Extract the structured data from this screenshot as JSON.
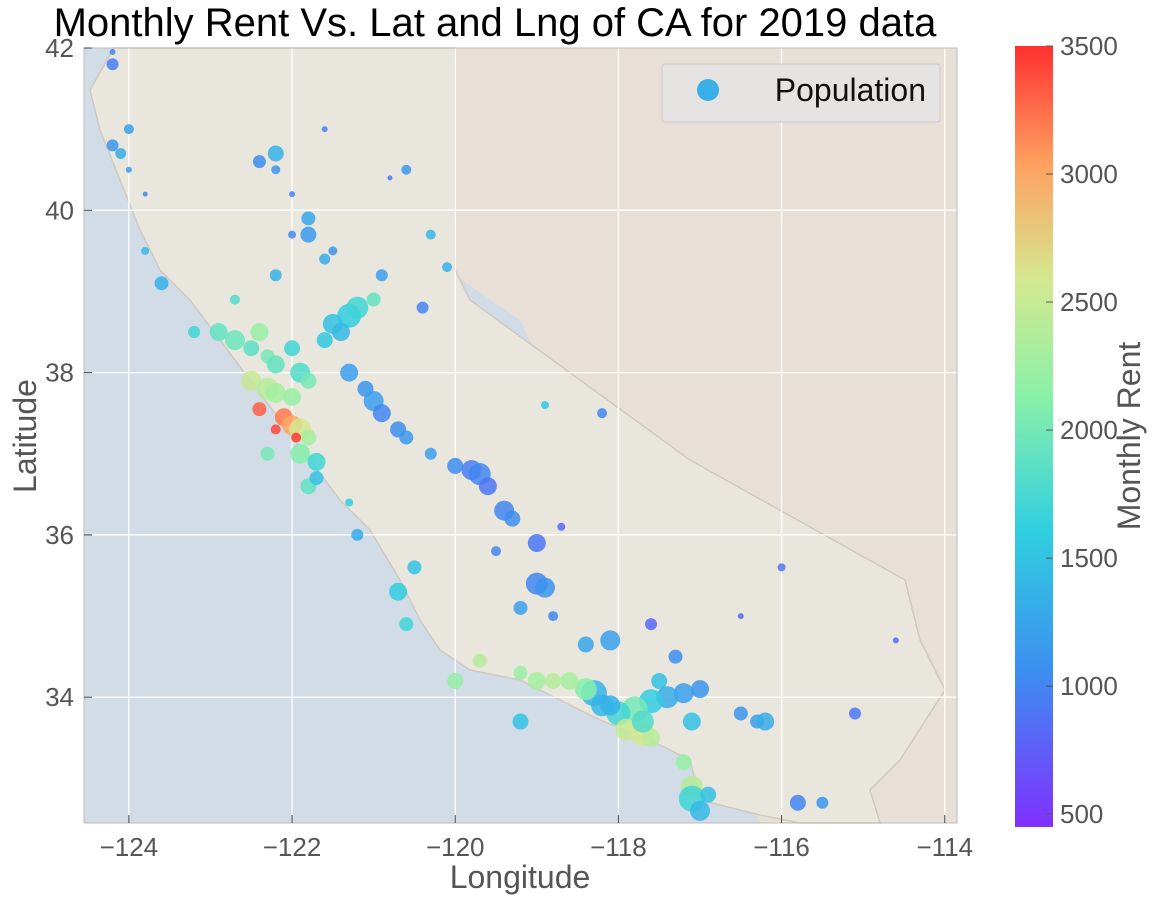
{
  "chart_data": {
    "type": "scatter",
    "title": "Monthly Rent Vs. Lat and Lng of CA for 2019 data",
    "xlabel": "Longitude",
    "ylabel": "Latitude",
    "xlim": [
      -124.55,
      -113.85
    ],
    "ylim": [
      32.45,
      42.0
    ],
    "xticks": [
      -124,
      -122,
      -120,
      -118,
      -116,
      -114
    ],
    "yticks": [
      34,
      36,
      38,
      40,
      42
    ],
    "xtick_labels": [
      "−124",
      "−122",
      "−120",
      "−118",
      "−116",
      "−114"
    ],
    "ytick_labels": [
      "34",
      "36",
      "38",
      "40",
      "42"
    ],
    "grid": true,
    "legend": {
      "position": "top-right",
      "entries": [
        "Population"
      ],
      "marker_color": "#3bb0e8"
    },
    "colorbar": {
      "label": "Monthly Rent",
      "range": [
        450,
        3500
      ],
      "ticks": [
        500,
        1000,
        1500,
        2000,
        2500,
        3000,
        3500
      ],
      "tick_labels": [
        "500",
        "1000",
        "1500",
        "2000",
        "2500",
        "3000",
        "3500"
      ],
      "colormap": "rainbow"
    },
    "series": [
      {
        "name": "Population",
        "points": [
          [
            -124.2,
            41.95,
            1000,
            6
          ],
          [
            -124.2,
            41.8,
            950,
            12
          ],
          [
            -124.0,
            41.0,
            1200,
            10
          ],
          [
            -124.2,
            40.8,
            1100,
            12
          ],
          [
            -124.1,
            40.7,
            1300,
            11
          ],
          [
            -124.0,
            40.5,
            1150,
            6
          ],
          [
            -123.8,
            40.2,
            1000,
            5
          ],
          [
            -122.4,
            40.6,
            1050,
            13
          ],
          [
            -122.2,
            40.7,
            1350,
            16
          ],
          [
            -122.2,
            40.5,
            1100,
            9
          ],
          [
            -122.0,
            40.2,
            950,
            6
          ],
          [
            -121.6,
            41.0,
            1000,
            6
          ],
          [
            -120.8,
            40.4,
            900,
            5
          ],
          [
            -120.6,
            40.5,
            1150,
            10
          ],
          [
            -121.8,
            39.9,
            1250,
            14
          ],
          [
            -121.8,
            39.7,
            1150,
            16
          ],
          [
            -121.5,
            39.5,
            1100,
            9
          ],
          [
            -121.6,
            39.4,
            1300,
            11
          ],
          [
            -122.0,
            39.7,
            1000,
            8
          ],
          [
            -122.2,
            39.2,
            1350,
            12
          ],
          [
            -123.6,
            39.1,
            1350,
            14
          ],
          [
            -123.8,
            39.5,
            1400,
            8
          ],
          [
            -123.2,
            38.5,
            1700,
            12
          ],
          [
            -122.9,
            38.5,
            1900,
            18
          ],
          [
            -122.7,
            38.4,
            1950,
            20
          ],
          [
            -122.5,
            38.3,
            1850,
            16
          ],
          [
            -122.4,
            38.5,
            2200,
            18
          ],
          [
            -122.3,
            38.2,
            2000,
            14
          ],
          [
            -122.0,
            38.3,
            1700,
            16
          ],
          [
            -122.2,
            38.1,
            1900,
            18
          ],
          [
            -121.9,
            38.0,
            1800,
            20
          ],
          [
            -122.5,
            37.9,
            2500,
            20
          ],
          [
            -122.3,
            37.8,
            2400,
            22
          ],
          [
            -122.2,
            37.75,
            2300,
            20
          ],
          [
            -122.0,
            37.7,
            2200,
            18
          ],
          [
            -121.8,
            37.9,
            2000,
            16
          ],
          [
            -122.4,
            37.55,
            3300,
            14
          ],
          [
            -122.1,
            37.45,
            3200,
            18
          ],
          [
            -122.0,
            37.35,
            3000,
            20
          ],
          [
            -121.9,
            37.3,
            2600,
            22
          ],
          [
            -121.8,
            37.2,
            2300,
            16
          ],
          [
            -122.2,
            37.3,
            3400,
            10
          ],
          [
            -121.95,
            37.2,
            3450,
            10
          ],
          [
            -122.3,
            37.0,
            2000,
            14
          ],
          [
            -121.9,
            37.0,
            2100,
            20
          ],
          [
            -121.7,
            36.9,
            1700,
            18
          ],
          [
            -121.8,
            36.6,
            1900,
            16
          ],
          [
            -121.7,
            36.7,
            1500,
            14
          ],
          [
            -121.3,
            36.4,
            1600,
            8
          ],
          [
            -121.3,
            38.7,
            1600,
            24
          ],
          [
            -121.5,
            38.6,
            1500,
            20
          ],
          [
            -121.2,
            38.8,
            1700,
            22
          ],
          [
            -121.0,
            38.9,
            1900,
            14
          ],
          [
            -121.4,
            38.5,
            1400,
            18
          ],
          [
            -121.6,
            38.4,
            1550,
            16
          ],
          [
            -121.3,
            38.0,
            1200,
            18
          ],
          [
            -121.1,
            37.8,
            1100,
            16
          ],
          [
            -121.0,
            37.65,
            1200,
            20
          ],
          [
            -120.9,
            37.5,
            1000,
            18
          ],
          [
            -120.7,
            37.3,
            1050,
            16
          ],
          [
            -120.6,
            37.2,
            1150,
            14
          ],
          [
            -120.3,
            37.0,
            1200,
            12
          ],
          [
            -120.0,
            36.85,
            1050,
            16
          ],
          [
            -119.8,
            36.8,
            950,
            20
          ],
          [
            -119.7,
            36.75,
            1000,
            22
          ],
          [
            -119.6,
            36.6,
            900,
            18
          ],
          [
            -119.4,
            36.3,
            1000,
            20
          ],
          [
            -119.3,
            36.2,
            1050,
            16
          ],
          [
            -119.0,
            35.9,
            900,
            18
          ],
          [
            -119.0,
            35.4,
            1000,
            22
          ],
          [
            -118.9,
            35.35,
            1100,
            20
          ],
          [
            -119.2,
            35.1,
            1200,
            14
          ],
          [
            -118.8,
            35.0,
            1000,
            10
          ],
          [
            -118.1,
            34.7,
            1200,
            20
          ],
          [
            -118.4,
            34.65,
            1250,
            16
          ],
          [
            -117.6,
            34.9,
            800,
            12
          ],
          [
            -117.3,
            34.5,
            1050,
            14
          ],
          [
            -117.0,
            34.1,
            1100,
            18
          ],
          [
            -117.2,
            34.05,
            1200,
            20
          ],
          [
            -117.4,
            34.0,
            1300,
            22
          ],
          [
            -117.6,
            33.95,
            1600,
            24
          ],
          [
            -117.8,
            33.85,
            2000,
            26
          ],
          [
            -118.0,
            33.8,
            1700,
            24
          ],
          [
            -118.2,
            33.9,
            1400,
            22
          ],
          [
            -118.3,
            34.05,
            1350,
            26
          ],
          [
            -118.4,
            34.1,
            2100,
            22
          ],
          [
            -118.6,
            34.2,
            2300,
            18
          ],
          [
            -118.8,
            34.2,
            2400,
            16
          ],
          [
            -119.0,
            34.2,
            2300,
            18
          ],
          [
            -119.2,
            34.3,
            2200,
            14
          ],
          [
            -119.7,
            34.45,
            2400,
            14
          ],
          [
            -120.0,
            34.2,
            2200,
            16
          ],
          [
            -119.2,
            33.7,
            1500,
            16
          ],
          [
            -117.9,
            33.6,
            2500,
            22
          ],
          [
            -117.7,
            33.55,
            2600,
            24
          ],
          [
            -117.6,
            33.5,
            2400,
            18
          ],
          [
            -117.2,
            33.2,
            2200,
            16
          ],
          [
            -117.1,
            32.9,
            2400,
            22
          ],
          [
            -117.1,
            32.75,
            1700,
            26
          ],
          [
            -117.0,
            32.6,
            1400,
            20
          ],
          [
            -116.9,
            32.8,
            1500,
            16
          ],
          [
            -117.1,
            33.7,
            1500,
            18
          ],
          [
            -116.5,
            33.8,
            1100,
            14
          ],
          [
            -116.3,
            33.7,
            1200,
            14
          ],
          [
            -116.2,
            33.7,
            1300,
            18
          ],
          [
            -115.8,
            32.7,
            1000,
            16
          ],
          [
            -115.5,
            32.7,
            1100,
            12
          ],
          [
            -115.1,
            33.8,
            900,
            12
          ],
          [
            -114.6,
            34.7,
            800,
            6
          ],
          [
            -116.0,
            35.6,
            900,
            8
          ],
          [
            -116.5,
            35.0,
            800,
            6
          ],
          [
            -118.2,
            37.5,
            1000,
            10
          ],
          [
            -118.9,
            37.6,
            1550,
            8
          ],
          [
            -120.4,
            38.8,
            1000,
            12
          ],
          [
            -120.1,
            39.3,
            1350,
            10
          ],
          [
            -120.3,
            39.7,
            1400,
            10
          ],
          [
            -120.9,
            39.2,
            1200,
            12
          ],
          [
            -122.7,
            38.9,
            1800,
            10
          ],
          [
            -120.5,
            35.6,
            1500,
            14
          ],
          [
            -120.7,
            35.3,
            1600,
            18
          ],
          [
            -120.6,
            34.9,
            1700,
            14
          ],
          [
            -121.2,
            36.0,
            1300,
            12
          ],
          [
            -119.5,
            35.8,
            1000,
            10
          ],
          [
            -118.7,
            36.1,
            800,
            8
          ],
          [
            -117.7,
            33.7,
            1800,
            22
          ],
          [
            -118.1,
            33.9,
            1350,
            20
          ],
          [
            -117.5,
            34.2,
            1500,
            16
          ]
        ]
      }
    ]
  }
}
